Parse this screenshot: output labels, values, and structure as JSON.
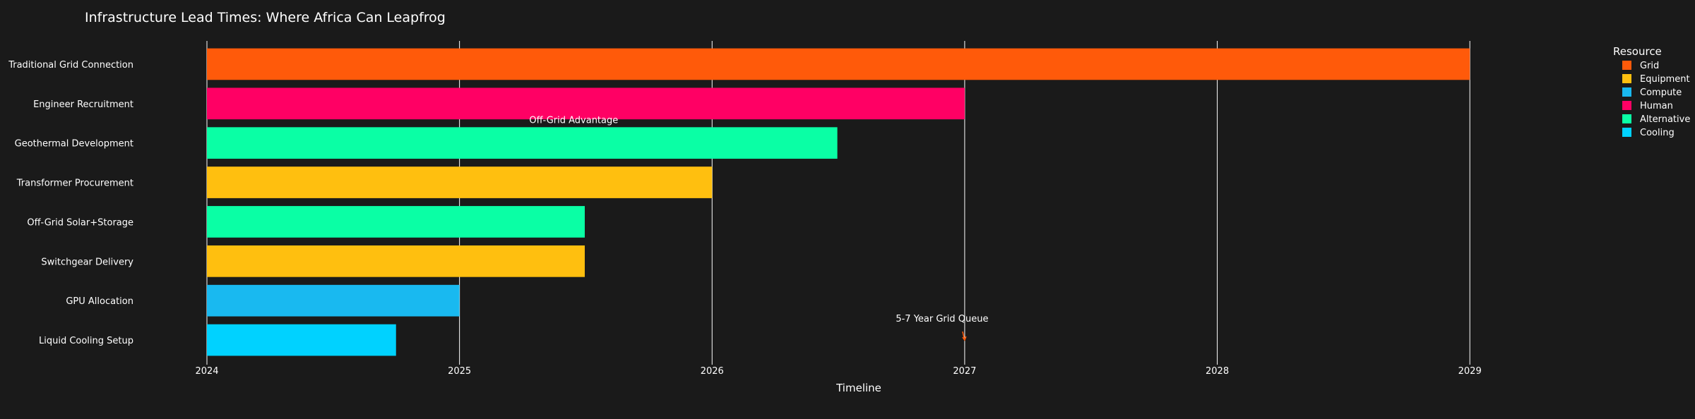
{
  "chart_data": {
    "type": "bar",
    "orientation": "horizontal",
    "title": "Infrastructure Lead Times: Where Africa Can Leapfrog",
    "xlabel": "Timeline",
    "ylabel": "",
    "x_axis": "date",
    "xlim": [
      "2024-01-01",
      "2029-03-01"
    ],
    "x_ticks": [
      "2024",
      "2025",
      "2026",
      "2027",
      "2028",
      "2029"
    ],
    "grid": "vertical",
    "tasks": [
      {
        "name": "Traditional Grid Connection",
        "start": "2024-01-01",
        "end": "2029-01-01",
        "resource": "Grid"
      },
      {
        "name": "Engineer Recruitment",
        "start": "2024-01-01",
        "end": "2027-01-01",
        "resource": "Human"
      },
      {
        "name": "Geothermal Development",
        "start": "2024-01-01",
        "end": "2026-07-01",
        "resource": "Alternative"
      },
      {
        "name": "Transformer Procurement",
        "start": "2024-01-01",
        "end": "2026-01-01",
        "resource": "Equipment"
      },
      {
        "name": "Off-Grid Solar+Storage",
        "start": "2024-01-01",
        "end": "2025-07-01",
        "resource": "Alternative"
      },
      {
        "name": "Switchgear Delivery",
        "start": "2024-01-01",
        "end": "2025-07-01",
        "resource": "Equipment"
      },
      {
        "name": "GPU Allocation",
        "start": "2024-01-01",
        "end": "2025-01-01",
        "resource": "Compute"
      },
      {
        "name": "Liquid Cooling Setup",
        "start": "2024-01-01",
        "end": "2024-10-01",
        "resource": "Cooling"
      }
    ],
    "legend": {
      "title": "Resource",
      "placement": "top-right",
      "items": [
        {
          "name": "Grid",
          "color": "#ff5a0a"
        },
        {
          "name": "Equipment",
          "color": "#ffbf0f"
        },
        {
          "name": "Compute",
          "color": "#19b9f0"
        },
        {
          "name": "Human",
          "color": "#ff0064"
        },
        {
          "name": "Alternative",
          "color": "#0affa5"
        },
        {
          "name": "Cooling",
          "color": "#00d2ff"
        }
      ]
    },
    "annotations": [
      {
        "text": "Off-Grid Advantage",
        "x": "2025-06-15",
        "y": "Geothermal Development",
        "arrow": false
      },
      {
        "text": "5-7 Year Grid Queue",
        "x": "2027-01-01",
        "y": "Liquid Cooling Setup",
        "arrow": true,
        "arrow_color": "#ff5a0a"
      }
    ]
  }
}
